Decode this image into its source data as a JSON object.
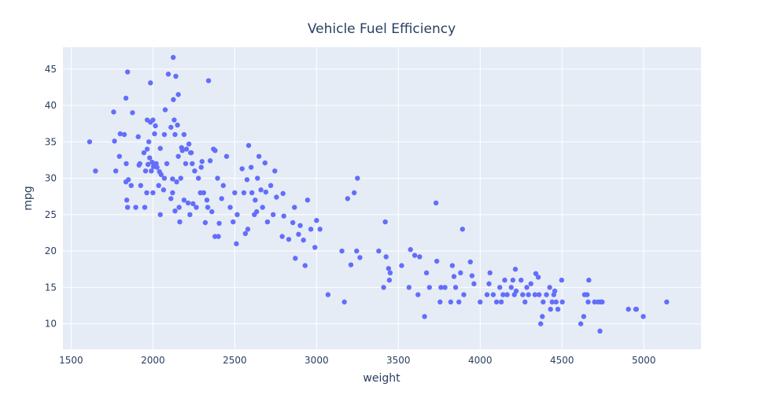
{
  "chart_data": {
    "type": "scatter",
    "title": "Vehicle Fuel Efficiency",
    "xlabel": "weight",
    "ylabel": "mpg",
    "xlim": [
      1450,
      5350
    ],
    "ylim": [
      6.5,
      48
    ],
    "xticks": [
      1500,
      2000,
      2500,
      3000,
      3500,
      4000,
      4500,
      5000
    ],
    "yticks": [
      10,
      15,
      20,
      25,
      30,
      35,
      40,
      45
    ],
    "grid": true,
    "legend": "none",
    "colors": {
      "marker": "#636efa",
      "plot_bg": "#e5ecf6",
      "grid": "#ffffff",
      "text": "#2a3f5f"
    },
    "points": [
      [
        1613,
        35
      ],
      [
        1649,
        31
      ],
      [
        1760,
        39.1
      ],
      [
        1765,
        35.1
      ],
      [
        1773,
        31
      ],
      [
        1795,
        33
      ],
      [
        1800,
        36.1
      ],
      [
        1825,
        36
      ],
      [
        1835,
        29.5
      ],
      [
        1835,
        41
      ],
      [
        1837,
        32
      ],
      [
        1840,
        27
      ],
      [
        1845,
        26
      ],
      [
        1845,
        44.6
      ],
      [
        1850,
        29.8
      ],
      [
        1867,
        29
      ],
      [
        1875,
        39
      ],
      [
        1895,
        26
      ],
      [
        1910,
        35.7
      ],
      [
        1915,
        31.8
      ],
      [
        1920,
        32
      ],
      [
        1925,
        29
      ],
      [
        1945,
        33.5
      ],
      [
        1950,
        26
      ],
      [
        1955,
        31
      ],
      [
        1962,
        28
      ],
      [
        1965,
        38
      ],
      [
        1965,
        34
      ],
      [
        1970,
        31.9
      ],
      [
        1975,
        35
      ],
      [
        1980,
        32.8
      ],
      [
        1985,
        43.1
      ],
      [
        1985,
        37.7
      ],
      [
        1990,
        31
      ],
      [
        1995,
        32.2
      ],
      [
        2000,
        38
      ],
      [
        2000,
        28
      ],
      [
        2003,
        31.6
      ],
      [
        2010,
        36.1
      ],
      [
        2015,
        37.2
      ],
      [
        2020,
        32
      ],
      [
        2025,
        31.5
      ],
      [
        2035,
        29
      ],
      [
        2040,
        30.9
      ],
      [
        2045,
        34.1
      ],
      [
        2045,
        25
      ],
      [
        2050,
        30.5
      ],
      [
        2065,
        28.4
      ],
      [
        2070,
        36
      ],
      [
        2070,
        30
      ],
      [
        2075,
        39.4
      ],
      [
        2085,
        32
      ],
      [
        2094,
        44.3
      ],
      [
        2110,
        37
      ],
      [
        2110,
        27.2
      ],
      [
        2120,
        29.9
      ],
      [
        2120,
        28
      ],
      [
        2124,
        46.6
      ],
      [
        2125,
        40.8
      ],
      [
        2130,
        38
      ],
      [
        2135,
        36
      ],
      [
        2135,
        25.5
      ],
      [
        2140,
        44
      ],
      [
        2145,
        29.5
      ],
      [
        2150,
        37.3
      ],
      [
        2155,
        41.5
      ],
      [
        2155,
        33
      ],
      [
        2160,
        26
      ],
      [
        2164,
        24
      ],
      [
        2170,
        30
      ],
      [
        2175,
        34.2
      ],
      [
        2180,
        33.8
      ],
      [
        2190,
        27
      ],
      [
        2190,
        36
      ],
      [
        2200,
        32
      ],
      [
        2205,
        34
      ],
      [
        2215,
        26.6
      ],
      [
        2220,
        34.7
      ],
      [
        2226,
        25
      ],
      [
        2230,
        33.5
      ],
      [
        2234,
        33.5
      ],
      [
        2240,
        32
      ],
      [
        2245,
        26.5
      ],
      [
        2255,
        31
      ],
      [
        2265,
        26
      ],
      [
        2278,
        30
      ],
      [
        2290,
        28
      ],
      [
        2295,
        31.5
      ],
      [
        2300,
        32.3
      ],
      [
        2310,
        28
      ],
      [
        2320,
        23.9
      ],
      [
        2330,
        27
      ],
      [
        2335,
        26
      ],
      [
        2340,
        43.4
      ],
      [
        2350,
        32.4
      ],
      [
        2360,
        25.4
      ],
      [
        2370,
        34
      ],
      [
        2379,
        22
      ],
      [
        2380,
        33.8
      ],
      [
        2395,
        30
      ],
      [
        2400,
        22
      ],
      [
        2405,
        23.8
      ],
      [
        2420,
        27.2
      ],
      [
        2430,
        29
      ],
      [
        2450,
        33
      ],
      [
        2472,
        26
      ],
      [
        2490,
        24
      ],
      [
        2500,
        28
      ],
      [
        2510,
        21
      ],
      [
        2515,
        25
      ],
      [
        2545,
        31.3
      ],
      [
        2556,
        28
      ],
      [
        2565,
        22.4
      ],
      [
        2575,
        29.8
      ],
      [
        2580,
        23
      ],
      [
        2585,
        34.5
      ],
      [
        2600,
        31.5
      ],
      [
        2605,
        28
      ],
      [
        2620,
        25
      ],
      [
        2625,
        27
      ],
      [
        2634,
        25.4
      ],
      [
        2639,
        30
      ],
      [
        2648,
        33
      ],
      [
        2660,
        28.4
      ],
      [
        2670,
        26
      ],
      [
        2685,
        32.1
      ],
      [
        2690,
        28.1
      ],
      [
        2700,
        24
      ],
      [
        2720,
        29
      ],
      [
        2735,
        25
      ],
      [
        2745,
        31
      ],
      [
        2755,
        27.4
      ],
      [
        2790,
        22
      ],
      [
        2795,
        27.9
      ],
      [
        2800,
        24.8
      ],
      [
        2830,
        21.6
      ],
      [
        2855,
        23.9
      ],
      [
        2865,
        26
      ],
      [
        2870,
        19
      ],
      [
        2890,
        22.3
      ],
      [
        2900,
        23.5
      ],
      [
        2920,
        21.5
      ],
      [
        2930,
        18
      ],
      [
        2945,
        27
      ],
      [
        2965,
        23
      ],
      [
        2990,
        20.5
      ],
      [
        3000,
        24.2
      ],
      [
        3021,
        23
      ],
      [
        3070,
        14
      ],
      [
        3155,
        20
      ],
      [
        3170,
        13
      ],
      [
        3190,
        27.2
      ],
      [
        3210,
        18.1
      ],
      [
        3230,
        28
      ],
      [
        3245,
        20
      ],
      [
        3250,
        30
      ],
      [
        3265,
        19.1
      ],
      [
        3380,
        20
      ],
      [
        3410,
        15
      ],
      [
        3420,
        24
      ],
      [
        3425,
        19.2
      ],
      [
        3440,
        17.6
      ],
      [
        3445,
        16
      ],
      [
        3450,
        17
      ],
      [
        3520,
        18
      ],
      [
        3565,
        15
      ],
      [
        3574,
        20.2
      ],
      [
        3600,
        19.4
      ],
      [
        3620,
        14
      ],
      [
        3630,
        19.2
      ],
      [
        3660,
        11
      ],
      [
        3672,
        17
      ],
      [
        3690,
        15
      ],
      [
        3730,
        26.6
      ],
      [
        3735,
        18.6
      ],
      [
        3755,
        13
      ],
      [
        3760,
        15
      ],
      [
        3785,
        15
      ],
      [
        3820,
        13
      ],
      [
        3830,
        18
      ],
      [
        3840,
        16.5
      ],
      [
        3850,
        15
      ],
      [
        3870,
        13
      ],
      [
        3880,
        17
      ],
      [
        3892,
        23
      ],
      [
        3900,
        14
      ],
      [
        3940,
        18.5
      ],
      [
        3950,
        16.6
      ],
      [
        3962,
        15.5
      ],
      [
        4000,
        13
      ],
      [
        4042,
        14
      ],
      [
        4054,
        15.5
      ],
      [
        4060,
        17
      ],
      [
        4080,
        14
      ],
      [
        4100,
        13
      ],
      [
        4120,
        15
      ],
      [
        4129,
        13
      ],
      [
        4140,
        14
      ],
      [
        4150,
        16
      ],
      [
        4165,
        14
      ],
      [
        4190,
        15
      ],
      [
        4200,
        16
      ],
      [
        4209,
        14
      ],
      [
        4215,
        17.5
      ],
      [
        4220,
        14.5
      ],
      [
        4250,
        16
      ],
      [
        4260,
        14
      ],
      [
        4274,
        13
      ],
      [
        4285,
        15
      ],
      [
        4295,
        14
      ],
      [
        4310,
        15.5
      ],
      [
        4335,
        14
      ],
      [
        4340,
        16.9
      ],
      [
        4355,
        16.4
      ],
      [
        4360,
        14
      ],
      [
        4370,
        10
      ],
      [
        4380,
        11
      ],
      [
        4385,
        13
      ],
      [
        4405,
        14
      ],
      [
        4425,
        15
      ],
      [
        4430,
        12
      ],
      [
        4440,
        13
      ],
      [
        4450,
        14
      ],
      [
        4456,
        14.5
      ],
      [
        4464,
        13
      ],
      [
        4475,
        12
      ],
      [
        4498,
        16
      ],
      [
        4502,
        13
      ],
      [
        4615,
        10
      ],
      [
        4633,
        11
      ],
      [
        4638,
        14
      ],
      [
        4654,
        14
      ],
      [
        4660,
        13
      ],
      [
        4664,
        16
      ],
      [
        4699,
        13
      ],
      [
        4720,
        13
      ],
      [
        4732,
        9
      ],
      [
        4735,
        13
      ],
      [
        4746,
        13
      ],
      [
        4906,
        12
      ],
      [
        4951,
        12
      ],
      [
        4955,
        12
      ],
      [
        4997,
        11
      ],
      [
        5140,
        13
      ]
    ]
  }
}
